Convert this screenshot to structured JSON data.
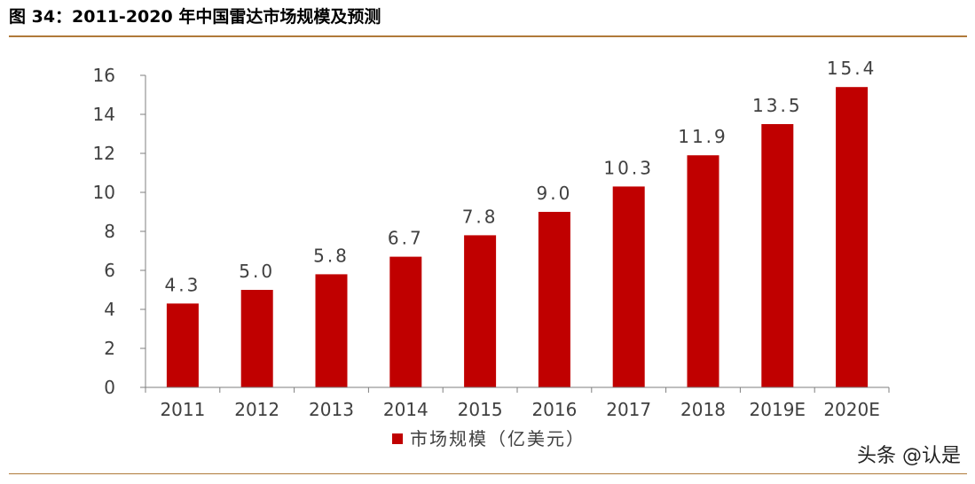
{
  "figure_title": "图 34：2011-2020 年中国雷达市场规模及预测",
  "watermark": "头条 @认是",
  "colors": {
    "bar": "#c00000",
    "axis": "#7f7f7f",
    "text": "#404040",
    "rule": "#b07a3a"
  },
  "chart_data": {
    "type": "bar",
    "categories": [
      "2011",
      "2012",
      "2013",
      "2014",
      "2015",
      "2016",
      "2017",
      "2018",
      "2019E",
      "2020E"
    ],
    "series": [
      {
        "name": "市场规模（亿美元）",
        "values": [
          4.3,
          5.0,
          5.8,
          6.7,
          7.8,
          9.0,
          10.3,
          11.9,
          13.5,
          15.4
        ]
      }
    ],
    "data_labels": [
      "4.3",
      "5.0",
      "5.8",
      "6.7",
      "7.8",
      "9.0",
      "10.3",
      "11.9",
      "13.5",
      "15.4"
    ],
    "yticks": [
      "0",
      "2",
      "4",
      "6",
      "8",
      "10",
      "12",
      "14",
      "16"
    ],
    "ylim": [
      0,
      16
    ],
    "grid": false,
    "legend_position": "bottom-center"
  }
}
